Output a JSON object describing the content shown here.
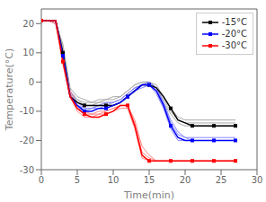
{
  "chart_data": {
    "type": "line",
    "xlabel": "Time(min)",
    "ylabel": "Temperature(°C)",
    "x": [
      0,
      1,
      2,
      3,
      4,
      5,
      6,
      7,
      8,
      9,
      10,
      11,
      12,
      13,
      14,
      15,
      16,
      17,
      18,
      19,
      20,
      21,
      22,
      23,
      24,
      25,
      26,
      27
    ],
    "xlim": [
      0,
      30
    ],
    "xticks": [
      0,
      5,
      10,
      15,
      20,
      25,
      30
    ],
    "ylim": [
      -30,
      25
    ],
    "yticks": [
      -30,
      -20,
      -10,
      0,
      10,
      20
    ],
    "grid": false,
    "legend": "upper right",
    "series": [
      {
        "name": "-15°C",
        "color": "black",
        "marker": "square",
        "values": [
          21,
          21,
          21,
          10,
          -5,
          -7,
          -8,
          -8,
          -8,
          -8,
          -8,
          -7,
          -5,
          -3,
          -1,
          -1,
          -2,
          -5,
          -9,
          -13,
          -14,
          -15,
          -15,
          -15,
          -15,
          -15,
          -15,
          -15
        ]
      },
      {
        "color": "#aaaaaa",
        "values": [
          21,
          21,
          21,
          11,
          -4,
          -6,
          -8,
          -8,
          -7,
          -7,
          -7,
          -6,
          -4,
          -2,
          -1,
          -1,
          -3,
          -7,
          -11,
          -14,
          -15,
          -15,
          -15,
          -15,
          -15,
          -15,
          -15,
          -15
        ]
      },
      {
        "color": "#aaaaaa",
        "values": [
          21,
          21,
          20,
          12,
          -3,
          -6,
          -7,
          -7,
          -7,
          -6,
          -6,
          -5,
          -3,
          -1,
          0,
          0,
          -2,
          -6,
          -10,
          -13,
          -14,
          -14,
          -14,
          -14,
          -14,
          -14,
          -14,
          -14
        ]
      },
      {
        "color": "#aaaaaa",
        "values": [
          21,
          21,
          20,
          13,
          -2,
          -5,
          -6,
          -7,
          -6,
          -6,
          -5,
          -5,
          -3,
          -1,
          0,
          0,
          -1,
          -5,
          -9,
          -12,
          -13,
          -13,
          -13,
          -13,
          -13,
          -13,
          -13,
          -13
        ]
      },
      {
        "name": "-20°C",
        "color": "blue",
        "marker": "square",
        "values": [
          21,
          21,
          21,
          9,
          -5,
          -8,
          -10,
          -10,
          -9,
          -9,
          -8,
          -7,
          -5,
          -3,
          -1,
          -1,
          -3,
          -8,
          -15,
          -19,
          -20,
          -20,
          -20,
          -20,
          -20,
          -20,
          -20,
          -20
        ]
      },
      {
        "color": "#8888ff",
        "values": [
          21,
          21,
          20,
          8,
          -5,
          -9,
          -10,
          -9,
          -9,
          -8,
          -8,
          -7,
          -5,
          -3,
          -2,
          -1,
          -4,
          -9,
          -16,
          -20,
          -20,
          -20,
          -20,
          -20,
          -20,
          -20,
          -20,
          -20
        ]
      },
      {
        "color": "#8888ff",
        "values": [
          21,
          21,
          20,
          9,
          -4,
          -8,
          -9,
          -9,
          -8,
          -8,
          -7,
          -6,
          -4,
          -2,
          -1,
          0,
          -2,
          -7,
          -14,
          -18,
          -19,
          -20,
          -20,
          -20,
          -20,
          -20,
          -20,
          -20
        ]
      },
      {
        "color": "#8888ff",
        "values": [
          21,
          21,
          20,
          10,
          -3,
          -7,
          -9,
          -9,
          -8,
          -7,
          -7,
          -6,
          -4,
          -2,
          -1,
          0,
          -2,
          -7,
          -13,
          -17,
          -19,
          -19,
          -19,
          -19,
          -19,
          -19,
          -19,
          -19
        ]
      },
      {
        "name": "-30°C",
        "color": "red",
        "marker": "square",
        "values": [
          21,
          21,
          21,
          7,
          -5,
          -9,
          -11,
          -12,
          -12,
          -11,
          -10,
          -8,
          -8,
          -15,
          -25,
          -27,
          -27,
          -27,
          -27,
          -27,
          -27,
          -27,
          -27,
          -27,
          -27,
          -27,
          -27,
          -27
        ]
      },
      {
        "color": "#ff8888",
        "values": [
          21,
          21,
          20,
          6,
          -5,
          -10,
          -12,
          -12,
          -11,
          -11,
          -10,
          -9,
          -9,
          -16,
          -26,
          -27,
          -27,
          -27,
          -27,
          -27,
          -27,
          -27,
          -27,
          -27,
          -27,
          -27,
          -27,
          -27
        ]
      },
      {
        "color": "#ff8888",
        "values": [
          21,
          21,
          20,
          7,
          -4,
          -9,
          -11,
          -11,
          -11,
          -10,
          -9,
          -8,
          -8,
          -14,
          -24,
          -26,
          -27,
          -27,
          -27,
          -27,
          -27,
          -27,
          -27,
          -27,
          -27,
          -27,
          -27,
          -27
        ]
      },
      {
        "color": "#ff8888",
        "values": [
          21,
          21,
          20,
          8,
          -3,
          -8,
          -10,
          -11,
          -10,
          -10,
          -9,
          -8,
          -8,
          -13,
          -22,
          -25,
          -27,
          -27,
          -27,
          -27,
          -27,
          -27,
          -27,
          -27,
          -27,
          -27,
          -27,
          -27
        ]
      }
    ]
  }
}
